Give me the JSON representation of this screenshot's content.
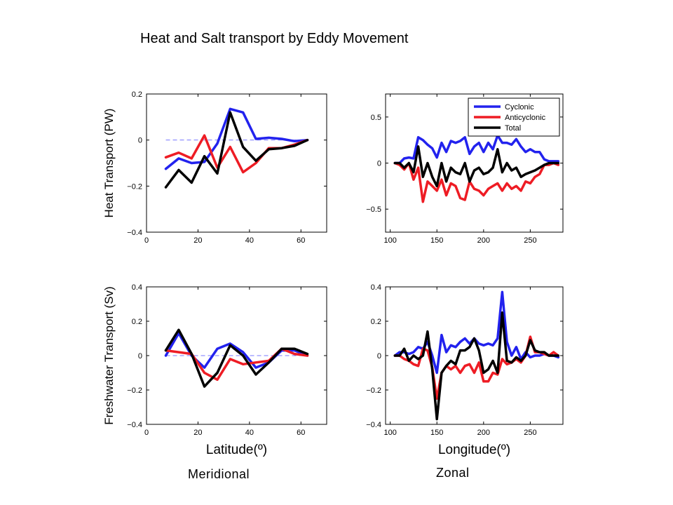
{
  "slide": {
    "title": "Heat and Salt transport by Eddy Movement",
    "caption_left": "Meridional",
    "caption_right": "Zonal"
  },
  "colors": {
    "cyclonic": "#2222ee",
    "anticyclonic": "#ee1c24",
    "total": "#000000",
    "reference": "#7777ff"
  },
  "chart_data": [
    {
      "type": "line",
      "ylabel": "Heat Transport (PW)",
      "xlabel": "",
      "xlim": [
        0,
        70
      ],
      "ylim": [
        -0.4,
        0.2
      ],
      "xticks": [
        0,
        20,
        40,
        60
      ],
      "yticks": [
        -0.4,
        -0.2,
        0,
        0.2
      ],
      "ytick_labels": [
        "−0.4",
        "−0.2",
        "0",
        "0.2"
      ],
      "reference_line": {
        "y": 0,
        "x": [
          7.5,
          62.5
        ],
        "style": "dashed"
      },
      "legend": null,
      "x": [
        7.5,
        12.5,
        17.5,
        22.5,
        27.5,
        32.5,
        37.5,
        42.5,
        47.5,
        52.5,
        57.5,
        62.5
      ],
      "series": [
        {
          "name": "Cyclonic",
          "color": "#2222ee",
          "values": [
            -0.125,
            -0.08,
            -0.1,
            -0.095,
            -0.015,
            0.135,
            0.12,
            0.005,
            0.01,
            0.005,
            -0.005,
            0.0
          ]
        },
        {
          "name": "Anticyclonic",
          "color": "#ee1c24",
          "values": [
            -0.075,
            -0.055,
            -0.08,
            0.02,
            -0.12,
            -0.03,
            -0.14,
            -0.1,
            -0.035,
            -0.035,
            -0.02,
            0.0
          ]
        },
        {
          "name": "Total",
          "color": "#000000",
          "values": [
            -0.205,
            -0.13,
            -0.185,
            -0.07,
            -0.145,
            0.12,
            -0.03,
            -0.09,
            -0.04,
            -0.035,
            -0.025,
            0.0
          ]
        }
      ]
    },
    {
      "type": "line",
      "ylabel": "",
      "xlabel": "",
      "xlim": [
        95,
        285
      ],
      "ylim": [
        -0.75,
        0.75
      ],
      "xticks": [
        100,
        150,
        200,
        250
      ],
      "yticks": [
        -0.5,
        0,
        0.5
      ],
      "ytick_labels": [
        "−0.5",
        "0",
        "0.5"
      ],
      "reference_line": null,
      "legend": {
        "placement": "top-right",
        "entries": [
          "Cyclonic",
          "Anticyclonic",
          "Total"
        ]
      },
      "x": [
        105,
        110,
        115,
        120,
        125,
        130,
        135,
        140,
        145,
        150,
        155,
        160,
        165,
        170,
        175,
        180,
        185,
        190,
        195,
        200,
        205,
        210,
        215,
        220,
        225,
        230,
        235,
        240,
        245,
        250,
        255,
        260,
        265,
        270,
        275,
        280
      ],
      "series": [
        {
          "name": "Cyclonic",
          "color": "#2222ee",
          "values": [
            0.0,
            0.0,
            0.05,
            0.06,
            0.05,
            0.28,
            0.25,
            0.2,
            0.16,
            0.06,
            0.22,
            0.12,
            0.24,
            0.22,
            0.24,
            0.28,
            0.1,
            0.18,
            0.22,
            0.12,
            0.22,
            0.15,
            0.3,
            0.22,
            0.22,
            0.2,
            0.26,
            0.18,
            0.12,
            0.15,
            0.12,
            0.12,
            0.04,
            0.02,
            0.02,
            0.02
          ]
        },
        {
          "name": "Anticyclonic",
          "color": "#ee1c24",
          "values": [
            0.0,
            -0.02,
            -0.07,
            0.0,
            -0.18,
            -0.05,
            -0.42,
            -0.2,
            -0.25,
            -0.3,
            -0.18,
            -0.35,
            -0.22,
            -0.25,
            -0.38,
            -0.4,
            -0.2,
            -0.28,
            -0.3,
            -0.35,
            -0.28,
            -0.25,
            -0.22,
            -0.3,
            -0.22,
            -0.28,
            -0.25,
            -0.3,
            -0.2,
            -0.22,
            -0.15,
            -0.12,
            -0.02,
            -0.02,
            0.0,
            -0.02
          ]
        },
        {
          "name": "Total",
          "color": "#000000",
          "values": [
            0.0,
            0.0,
            -0.05,
            0.0,
            -0.1,
            0.18,
            -0.15,
            0.0,
            -0.15,
            -0.25,
            0.0,
            -0.2,
            -0.05,
            -0.1,
            -0.12,
            0.0,
            -0.2,
            -0.08,
            -0.05,
            -0.12,
            -0.1,
            -0.05,
            0.15,
            -0.1,
            0.0,
            -0.08,
            -0.05,
            -0.15,
            -0.12,
            -0.1,
            -0.08,
            -0.05,
            -0.02,
            0.0,
            0.0,
            0.0
          ]
        }
      ]
    },
    {
      "type": "line",
      "ylabel": "Freshwater Transport (Sv)",
      "xlabel": "Latitude(º)",
      "xlim": [
        0,
        70
      ],
      "ylim": [
        -0.4,
        0.4
      ],
      "xticks": [
        0,
        20,
        40,
        60
      ],
      "yticks": [
        -0.4,
        -0.2,
        0,
        0.2,
        0.4
      ],
      "ytick_labels": [
        "−0.4",
        "−0.2",
        "0",
        "0.2",
        "0.4"
      ],
      "reference_line": {
        "y": 0,
        "x": [
          7.5,
          62.5
        ],
        "style": "dashed"
      },
      "legend": null,
      "x": [
        7.5,
        12.5,
        17.5,
        22.5,
        27.5,
        32.5,
        37.5,
        42.5,
        47.5,
        52.5,
        57.5,
        62.5
      ],
      "series": [
        {
          "name": "Cyclonic",
          "color": "#2222ee",
          "values": [
            0.0,
            0.13,
            0.0,
            -0.07,
            0.04,
            0.07,
            0.02,
            -0.07,
            -0.04,
            0.03,
            0.03,
            0.0
          ]
        },
        {
          "name": "Anticyclonic",
          "color": "#ee1c24",
          "values": [
            0.03,
            0.02,
            0.01,
            -0.1,
            -0.14,
            -0.02,
            -0.05,
            -0.04,
            -0.03,
            0.04,
            0.01,
            0.0
          ]
        },
        {
          "name": "Total",
          "color": "#000000",
          "values": [
            0.03,
            0.15,
            0.01,
            -0.18,
            -0.1,
            0.06,
            0.0,
            -0.11,
            -0.04,
            0.04,
            0.04,
            0.01
          ]
        }
      ]
    },
    {
      "type": "line",
      "ylabel": "",
      "xlabel": "Longitude(º)",
      "xlim": [
        95,
        285
      ],
      "ylim": [
        -0.4,
        0.4
      ],
      "xticks": [
        100,
        150,
        200,
        250
      ],
      "yticks": [
        -0.4,
        -0.2,
        0,
        0.2,
        0.4
      ],
      "ytick_labels": [
        "−0.4",
        "−0.2",
        "0",
        "0.2",
        "0.4"
      ],
      "reference_line": null,
      "legend": null,
      "x": [
        105,
        110,
        115,
        120,
        125,
        130,
        135,
        140,
        145,
        150,
        155,
        160,
        165,
        170,
        175,
        180,
        185,
        190,
        195,
        200,
        205,
        210,
        215,
        220,
        225,
        230,
        235,
        240,
        245,
        250,
        255,
        260,
        265,
        270,
        275,
        280
      ],
      "series": [
        {
          "name": "Cyclonic",
          "color": "#2222ee",
          "values": [
            0.0,
            0.02,
            0.02,
            0.01,
            0.02,
            0.05,
            0.04,
            0.08,
            0.0,
            -0.1,
            0.12,
            0.02,
            0.06,
            0.05,
            0.08,
            0.1,
            0.07,
            0.1,
            0.07,
            0.06,
            0.07,
            0.06,
            0.1,
            0.37,
            0.08,
            0.0,
            0.05,
            -0.02,
            0.02,
            -0.01,
            0.0,
            0.0,
            0.01,
            0.0,
            0.0,
            -0.01
          ]
        },
        {
          "name": "Anticyclonic",
          "color": "#ee1c24",
          "values": [
            0.0,
            0.0,
            -0.02,
            -0.03,
            -0.05,
            -0.06,
            0.04,
            0.03,
            -0.07,
            -0.25,
            -0.1,
            -0.06,
            -0.08,
            -0.06,
            -0.1,
            -0.06,
            -0.05,
            -0.1,
            -0.04,
            -0.15,
            -0.15,
            -0.1,
            -0.11,
            -0.02,
            -0.05,
            -0.04,
            -0.02,
            -0.04,
            0.0,
            0.11,
            0.02,
            0.02,
            0.01,
            0.0,
            0.02,
            0.0
          ]
        },
        {
          "name": "Total",
          "color": "#000000",
          "values": [
            0.0,
            0.0,
            0.04,
            -0.03,
            0.0,
            -0.02,
            0.0,
            0.14,
            -0.08,
            -0.37,
            -0.1,
            -0.06,
            -0.03,
            -0.05,
            0.03,
            0.03,
            0.05,
            0.1,
            0.03,
            -0.1,
            -0.08,
            -0.03,
            -0.1,
            0.25,
            -0.03,
            -0.04,
            -0.01,
            -0.03,
            0.0,
            0.09,
            0.03,
            0.02,
            0.02,
            0.0,
            0.0,
            0.0
          ]
        }
      ]
    }
  ]
}
